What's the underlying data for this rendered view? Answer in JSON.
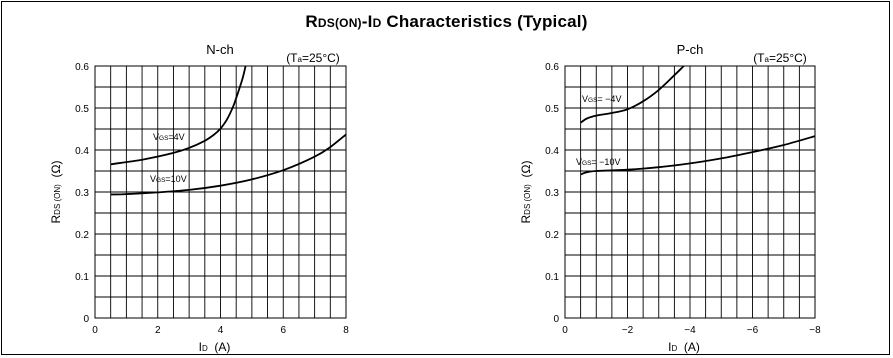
{
  "title": {
    "main_r": "R",
    "sub_ds": "DS(ON)",
    "dash_i": "-I",
    "sub_d": "D",
    "rest": " Characteristics (Typical)"
  },
  "chart_data": [
    {
      "type": "line",
      "title": "N-ch",
      "condition": "(Ta=25°C)",
      "condition_parts": {
        "open": "(T",
        "sub": "a",
        "close": "=25°C)"
      },
      "xlabel": "ID (A)",
      "xlabel_parts": {
        "main": "I",
        "sub": "D",
        "unit": "(A)"
      },
      "ylabel": "RDS (ON) (Ω)",
      "ylabel_parts": {
        "main": "R",
        "sub": "DS (ON)",
        "unit": "(Ω)"
      },
      "xlim": [
        0,
        8
      ],
      "ylim": [
        0,
        0.6
      ],
      "xticks": [
        "0",
        "2",
        "4",
        "6",
        "8"
      ],
      "yticks": [
        "0",
        "0.1",
        "0.2",
        "0.3",
        "0.4",
        "0.5",
        "0.6"
      ],
      "grid": true,
      "series": [
        {
          "name": "VGS=4V",
          "label_parts": {
            "main": "V",
            "sub": "GS",
            "rest": "=4V"
          },
          "x": [
            0.5,
            1.5,
            2.5,
            3.0,
            3.5,
            3.8,
            4.0,
            4.2,
            4.4,
            4.55,
            4.7,
            4.8
          ],
          "y": [
            0.366,
            0.377,
            0.393,
            0.405,
            0.422,
            0.437,
            0.451,
            0.472,
            0.503,
            0.535,
            0.57,
            0.6
          ]
        },
        {
          "name": "VGS=10V",
          "label_parts": {
            "main": "V",
            "sub": "GS",
            "rest": "=10V"
          },
          "x": [
            0.5,
            1.0,
            2.0,
            3.0,
            4.0,
            5.0,
            6.0,
            7.0,
            7.5,
            8.0
          ],
          "y": [
            0.294,
            0.295,
            0.299,
            0.305,
            0.315,
            0.33,
            0.352,
            0.384,
            0.407,
            0.437
          ]
        }
      ]
    },
    {
      "type": "line",
      "title": "P-ch",
      "condition": "(Ta=25°C)",
      "condition_parts": {
        "open": "(T",
        "sub": "a",
        "close": "=25°C)"
      },
      "xlabel": "ID (A)",
      "xlabel_parts": {
        "main": "I",
        "sub": "D",
        "unit": "(A)"
      },
      "ylabel": "RDS (ON) (Ω)",
      "ylabel_parts": {
        "main": "R",
        "sub": "DS (ON)",
        "unit": "(Ω)"
      },
      "xlim": [
        0,
        -8
      ],
      "ylim": [
        0,
        0.6
      ],
      "xticks": [
        "0",
        "−2",
        "−4",
        "−6",
        "−8"
      ],
      "yticks": [
        "0",
        "0.1",
        "0.2",
        "0.3",
        "0.4",
        "0.5",
        "0.6"
      ],
      "grid": true,
      "series": [
        {
          "name": "VGS= −4V",
          "label_parts": {
            "main": "V",
            "sub": "GS",
            "rest": "= −4V"
          },
          "x": [
            -0.5,
            -0.7,
            -1.0,
            -1.5,
            -2.0,
            -2.5,
            -3.0,
            -3.5,
            -3.8
          ],
          "y": [
            0.465,
            0.475,
            0.482,
            0.488,
            0.497,
            0.516,
            0.543,
            0.578,
            0.6
          ]
        },
        {
          "name": "VGS= −10V",
          "label_parts": {
            "main": "V",
            "sub": "GS",
            "rest": "= −10V"
          },
          "x": [
            -0.5,
            -0.7,
            -1.0,
            -2.0,
            -3.0,
            -4.0,
            -5.0,
            -6.0,
            -7.0,
            -8.0
          ],
          "y": [
            0.342,
            0.347,
            0.35,
            0.353,
            0.359,
            0.368,
            0.38,
            0.395,
            0.412,
            0.433
          ]
        }
      ]
    }
  ]
}
